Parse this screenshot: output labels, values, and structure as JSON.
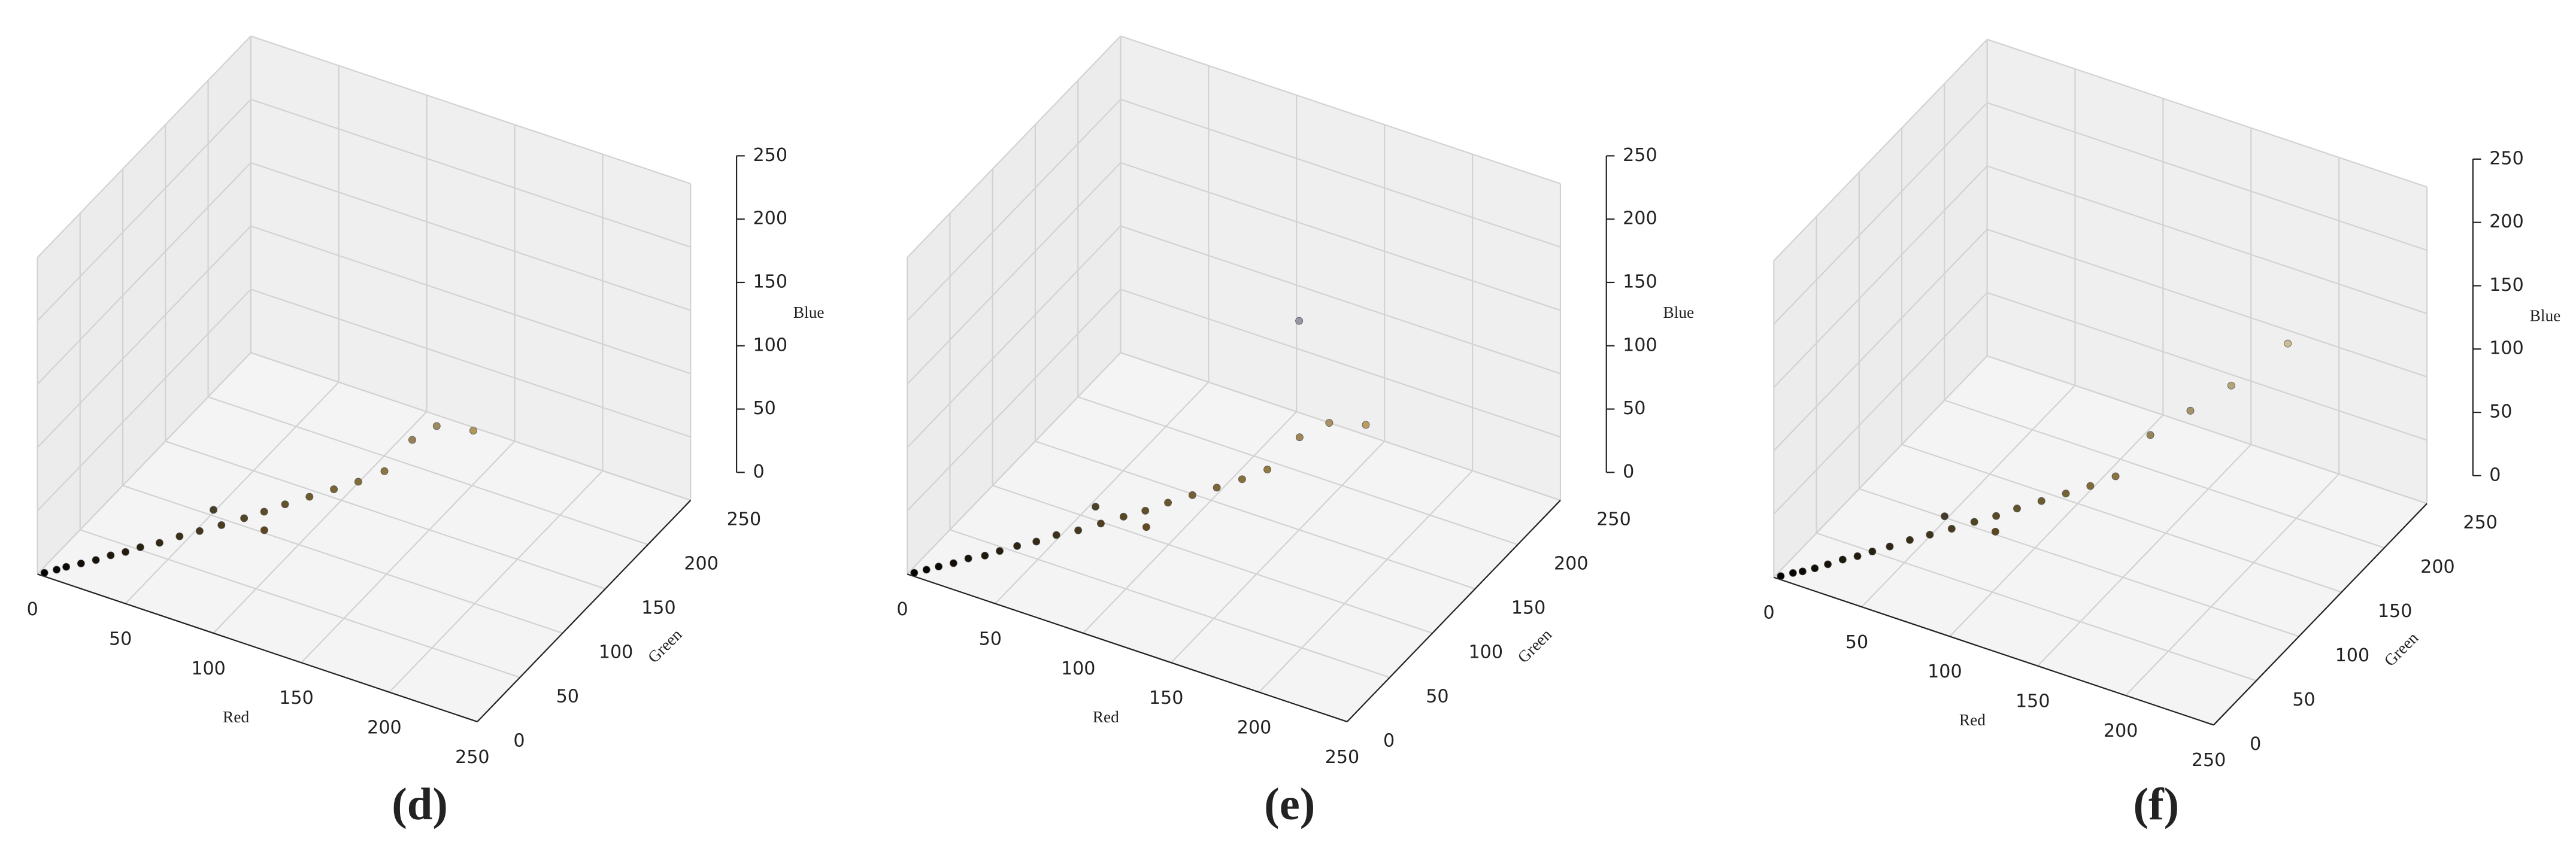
{
  "chart_data": [
    {
      "type": "scatter3d",
      "caption": "(d)",
      "xlabel": "Red",
      "ylabel": "Green",
      "zlabel": "Blue",
      "xlim": [
        0,
        250
      ],
      "ylim": [
        0,
        250
      ],
      "zlim": [
        0,
        250
      ],
      "xticks": [
        0,
        50,
        100,
        150,
        200,
        250
      ],
      "yticks": [
        0,
        50,
        100,
        150,
        200,
        250
      ],
      "zticks": [
        0,
        50,
        100,
        150,
        200,
        250
      ],
      "x": [
        3,
        8,
        12,
        18,
        24,
        30,
        36,
        42,
        50,
        58,
        66,
        75,
        84,
        92,
        100,
        110,
        120,
        130,
        140,
        95,
        70,
        150,
        160,
        175
      ],
      "y": [
        2,
        6,
        9,
        14,
        19,
        24,
        29,
        34,
        40,
        47,
        54,
        61,
        69,
        76,
        84,
        92,
        100,
        108,
        118,
        70,
        62,
        130,
        138,
        150
      ],
      "z": [
        1,
        3,
        5,
        7,
        9,
        12,
        14,
        17,
        20,
        24,
        27,
        31,
        35,
        39,
        43,
        48,
        53,
        58,
        64,
        30,
        40,
        85,
        95,
        90
      ]
    },
    {
      "type": "scatter3d",
      "caption": "(e)",
      "xlabel": "Red",
      "ylabel": "Green",
      "zlabel": "Blue",
      "xlim": [
        0,
        250
      ],
      "ylim": [
        0,
        250
      ],
      "zlim": [
        0,
        250
      ],
      "xticks": [
        0,
        50,
        100,
        150,
        200,
        250
      ],
      "yticks": [
        0,
        50,
        100,
        150,
        200,
        250
      ],
      "zticks": [
        0,
        50,
        100,
        150,
        200,
        250
      ],
      "x": [
        3,
        8,
        13,
        19,
        25,
        32,
        38,
        45,
        53,
        61,
        70,
        79,
        88,
        97,
        106,
        116,
        126,
        136,
        146,
        100,
        75,
        158,
        170,
        185,
        150
      ],
      "y": [
        2,
        6,
        10,
        15,
        20,
        25,
        30,
        36,
        42,
        49,
        56,
        64,
        72,
        79,
        87,
        95,
        103,
        112,
        121,
        74,
        66,
        134,
        144,
        156,
        150
      ],
      "z": [
        1,
        3,
        5,
        7,
        10,
        12,
        15,
        18,
        21,
        25,
        28,
        32,
        36,
        40,
        45,
        50,
        55,
        60,
        66,
        32,
        42,
        88,
        98,
        95,
        165
      ]
    },
    {
      "type": "scatter3d",
      "caption": "(f)",
      "xlabel": "Red",
      "ylabel": "Green",
      "zlabel": "Blue",
      "xlim": [
        0,
        250
      ],
      "ylim": [
        0,
        250
      ],
      "zlim": [
        0,
        250
      ],
      "xticks": [
        0,
        50,
        100,
        150,
        200,
        250
      ],
      "yticks": [
        0,
        50,
        100,
        150,
        200,
        250
      ],
      "zticks": [
        0,
        50,
        100,
        150,
        200,
        250
      ],
      "x": [
        3,
        8,
        12,
        17,
        22,
        28,
        34,
        40,
        47,
        55,
        63,
        72,
        81,
        90,
        98,
        108,
        118,
        128,
        138,
        92,
        68,
        150,
        165,
        180,
        200
      ],
      "y": [
        2,
        6,
        9,
        13,
        18,
        23,
        28,
        33,
        39,
        46,
        53,
        60,
        68,
        75,
        83,
        91,
        99,
        107,
        116,
        70,
        60,
        132,
        148,
        165,
        190
      ],
      "z": [
        1,
        3,
        4,
        6,
        8,
        11,
        13,
        16,
        19,
        23,
        26,
        30,
        34,
        38,
        42,
        47,
        52,
        57,
        63,
        30,
        38,
        90,
        105,
        120,
        145
      ]
    }
  ]
}
